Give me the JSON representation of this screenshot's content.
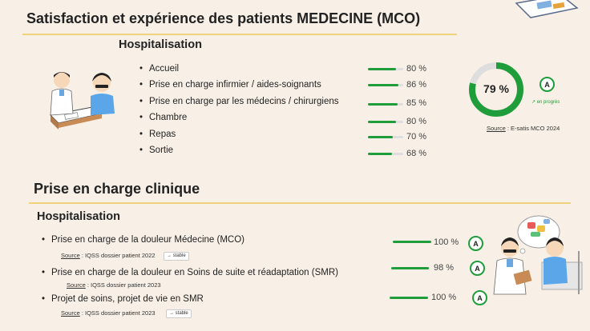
{
  "colors": {
    "accent": "#1f9d3a",
    "track": "#dedede",
    "rule": "#f0d27a",
    "background": "#f8f0e6"
  },
  "section1": {
    "title": "Satisfaction et expérience des patients MEDECINE (MCO)",
    "subtitle": "Hospitalisation",
    "items": [
      {
        "label": "Accueil",
        "value": "80 %",
        "fraction": 0.8
      },
      {
        "label": "Prise en charge infirmier / aides-soignants",
        "value": "86 %",
        "fraction": 0.86
      },
      {
        "label": "Prise en charge par les médecins / chirurgiens",
        "value": "85 %",
        "fraction": 0.85
      },
      {
        "label": "Chambre",
        "value": "80 %",
        "fraction": 0.8
      },
      {
        "label": "Repas",
        "value": "70 %",
        "fraction": 0.7
      },
      {
        "label": "Sortie",
        "value": "68 %",
        "fraction": 0.68
      }
    ],
    "donut": {
      "value": "79 %",
      "fraction": 0.79
    },
    "badge": "A",
    "trend": "en progrès",
    "source_label": "Source",
    "source_text": " : E-satis MCO 2024"
  },
  "section2": {
    "title": "Prise en charge clinique",
    "subtitle": "Hospitalisation",
    "items": [
      {
        "label": "Prise en charge de la douleur Médecine (MCO)",
        "value": "100 %",
        "fraction": 1.0,
        "badge": "A",
        "source_label": "Source",
        "source_text": " : IQSS dossier patient 2022",
        "tag": "stable"
      },
      {
        "label": "Prise en charge de la douleur en Soins de suite et réadaptation (SMR)",
        "value": "98 %",
        "fraction": 0.98,
        "badge": "A",
        "source_label": "Source",
        "source_text": " : IQSS dossier patient 2023",
        "tag": ""
      },
      {
        "label": "Projet de soins, projet de vie en SMR",
        "value": "100 %",
        "fraction": 1.0,
        "badge": "A",
        "source_label": "Source",
        "source_text": " : IQSS dossier patient 2023",
        "tag": "stable"
      }
    ]
  },
  "icons": {
    "top_right": "clipboard-illustration",
    "consult": "doctor-patient-illustration",
    "bedside": "doctor-bedside-illustration",
    "arrow": "arrow-right-icon",
    "trend": "trend-up-icon"
  }
}
